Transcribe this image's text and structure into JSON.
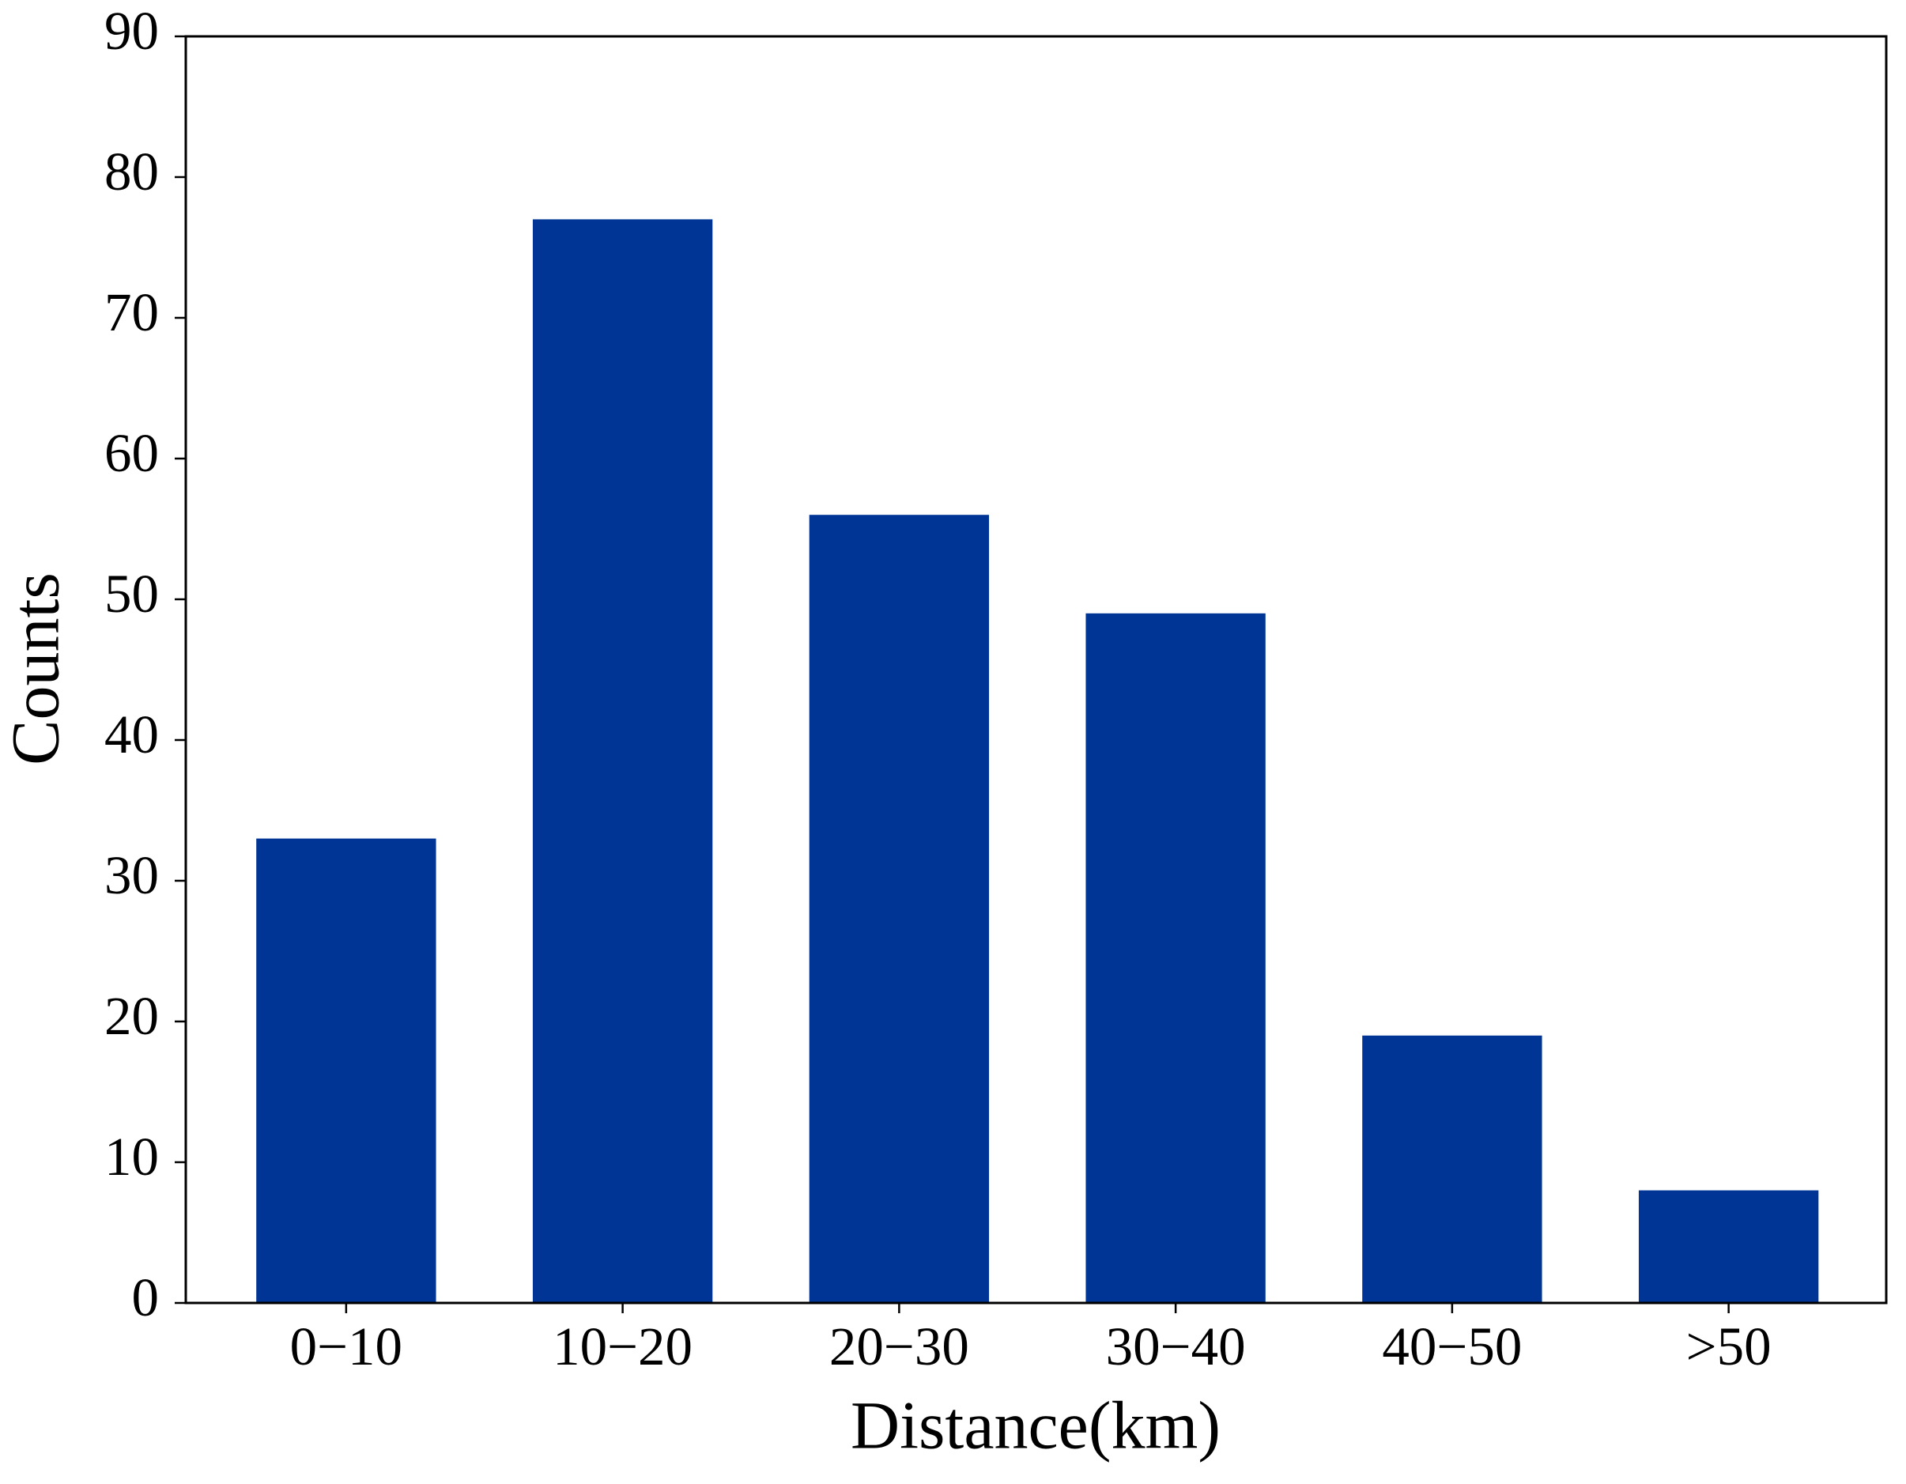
{
  "chart_data": {
    "type": "bar",
    "x_label": "Distance(km)",
    "y_label": "Counts",
    "categories": [
      "0−10",
      "10−20",
      "20−30",
      "30−40",
      "40−50",
      ">50"
    ],
    "values": [
      33,
      77,
      56,
      49,
      19,
      8
    ],
    "color": "#003595",
    "ylim": [
      0,
      90
    ],
    "yticks": [
      0,
      10,
      20,
      30,
      40,
      50,
      60,
      70,
      80,
      90
    ],
    "grid": false
  }
}
